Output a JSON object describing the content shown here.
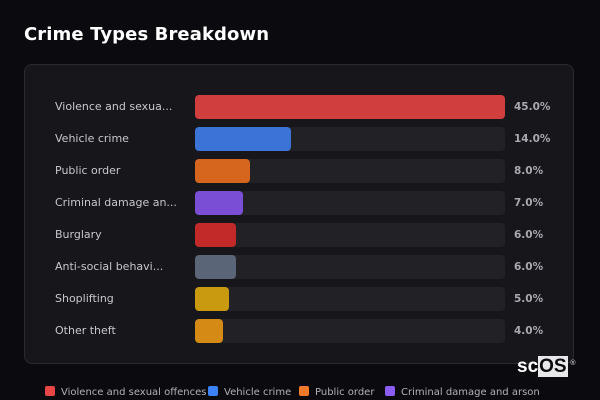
{
  "header": {
    "title": "Crime Types Breakdown"
  },
  "chart_data": {
    "type": "bar",
    "orientation": "horizontal",
    "title": "Crime Types Breakdown",
    "categories": [
      "Violence and sexual offences",
      "Vehicle crime",
      "Public order",
      "Criminal damage and arson",
      "Burglary",
      "Anti-social behaviour",
      "Shoplifting",
      "Other theft"
    ],
    "display_labels": [
      "Violence and sexua...",
      "Vehicle crime",
      "Public order",
      "Criminal damage an...",
      "Burglary",
      "Anti-social behavi...",
      "Shoplifting",
      "Other theft"
    ],
    "values": [
      45.0,
      14.0,
      8.0,
      7.0,
      6.0,
      6.0,
      5.0,
      4.0
    ],
    "value_labels": [
      "45.0%",
      "14.0%",
      "8.0%",
      "7.0%",
      "6.0%",
      "6.0%",
      "5.0%",
      "4.0%"
    ],
    "colors": [
      "#d13e3e",
      "#3b74d6",
      "#d6661e",
      "#7a4fd6",
      "#c22a2a",
      "#5a6578",
      "#c99a10",
      "#d48a14"
    ],
    "xlabel": "",
    "ylabel": "",
    "unit": "%",
    "grid": false,
    "legend_position": "bottom"
  },
  "legend": {
    "items": [
      {
        "label": "Violence and sexual offences",
        "color": "#e84545"
      },
      {
        "label": "Vehicle crime",
        "color": "#3b82f6"
      },
      {
        "label": "Public order",
        "color": "#f07a2a"
      },
      {
        "label": "Criminal damage and arson",
        "color": "#8b5cf6"
      }
    ]
  },
  "watermark": {
    "sc": "sc",
    "os": "OS",
    "reg": "®"
  }
}
